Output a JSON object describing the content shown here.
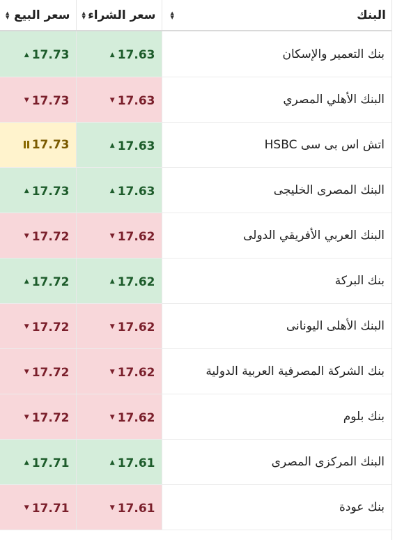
{
  "colors": {
    "up_bg": "#d4edda",
    "up_text": "#1d5c2b",
    "down_bg": "#f8d7da",
    "down_text": "#7a1f2b",
    "same_bg": "#fff3cd",
    "same_text": "#7a5a00"
  },
  "table": {
    "headers": {
      "sell": "سعر البيع",
      "buy": "سعر الشراء",
      "bank": "البنك"
    },
    "rows": [
      {
        "bank": "بنك التعمير والإسكان",
        "buy": "17.63",
        "buy_trend": "up",
        "sell": "17.73",
        "sell_trend": "up"
      },
      {
        "bank": "البنك الأهلي المصري",
        "buy": "17.63",
        "buy_trend": "down",
        "sell": "17.73",
        "sell_trend": "down"
      },
      {
        "bank": "اتش اس بى سى HSBC",
        "buy": "17.63",
        "buy_trend": "up",
        "sell": "17.73",
        "sell_trend": "same"
      },
      {
        "bank": "البنك المصرى الخليجى",
        "buy": "17.63",
        "buy_trend": "up",
        "sell": "17.73",
        "sell_trend": "up"
      },
      {
        "bank": "البنك العربي الأفريقي الدولى",
        "buy": "17.62",
        "buy_trend": "down",
        "sell": "17.72",
        "sell_trend": "down"
      },
      {
        "bank": "بنك البركة",
        "buy": "17.62",
        "buy_trend": "up",
        "sell": "17.72",
        "sell_trend": "up"
      },
      {
        "bank": "البنك الأهلى اليونانى",
        "buy": "17.62",
        "buy_trend": "down",
        "sell": "17.72",
        "sell_trend": "down"
      },
      {
        "bank": "بنك الشركة المصرفية العربية الدولية",
        "buy": "17.62",
        "buy_trend": "down",
        "sell": "17.72",
        "sell_trend": "down"
      },
      {
        "bank": "بنك بلوم",
        "buy": "17.62",
        "buy_trend": "down",
        "sell": "17.72",
        "sell_trend": "down"
      },
      {
        "bank": "البنك المركزى المصرى",
        "buy": "17.61",
        "buy_trend": "up",
        "sell": "17.71",
        "sell_trend": "up"
      },
      {
        "bank": "بنك عودة",
        "buy": "17.61",
        "buy_trend": "down",
        "sell": "17.71",
        "sell_trend": "down"
      }
    ]
  }
}
